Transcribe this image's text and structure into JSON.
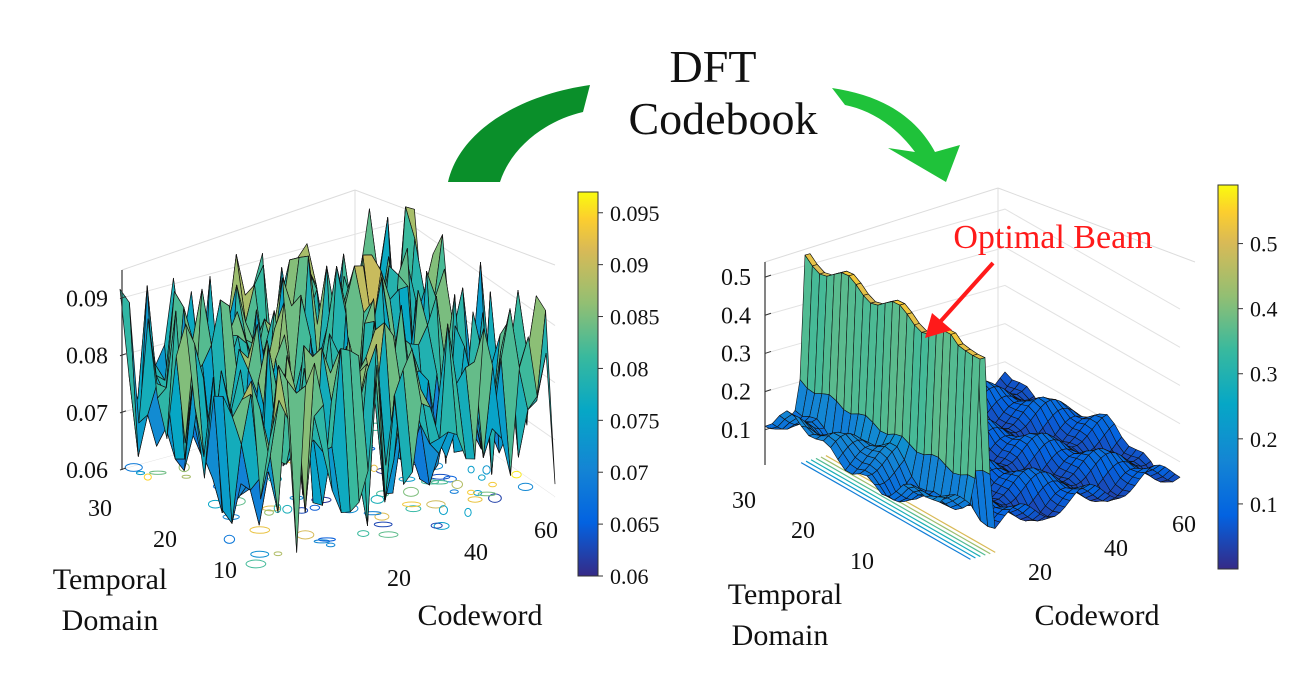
{
  "header": {
    "line1": "DFT",
    "line2": "Codebook"
  },
  "annotation": {
    "text": "Optimal Beam",
    "color": "#ff1a1a"
  },
  "colors": {
    "arrow_dark": "#0a8f2a",
    "arrow_light": "#1fc23a",
    "mesh_edge": "#111111"
  },
  "chart_data": [
    {
      "type": "surface",
      "xlabel": "Codeword",
      "ylabel": "Temporal Domain",
      "zlabel": "",
      "xticks": [
        "20",
        "40",
        "60"
      ],
      "yticks": [
        "10",
        "20",
        "30"
      ],
      "zticks": [
        "0.06",
        "0.07",
        "0.08",
        "0.09"
      ],
      "xlim": [
        1,
        64
      ],
      "ylim": [
        1,
        32
      ],
      "zlim": [
        0.06,
        0.095
      ],
      "colorbar": {
        "ticks": [
          "0.06",
          "0.065",
          "0.07",
          "0.075",
          "0.08",
          "0.085",
          "0.09",
          "0.095"
        ],
        "range": [
          0.06,
          0.097
        ],
        "colormap": "parula"
      },
      "grid": true,
      "contour_on_floor": true,
      "description_of_values": "noisy surface fluctuating between about 0.06 and 0.095 across all codewords"
    },
    {
      "type": "surface",
      "xlabel": "Codeword",
      "ylabel": "Temporal Domain",
      "zlabel": "",
      "xticks": [
        "20",
        "40",
        "60"
      ],
      "yticks": [
        "10",
        "20",
        "30"
      ],
      "zticks": [
        "0.1",
        "0.2",
        "0.3",
        "0.4",
        "0.5"
      ],
      "xlim": [
        1,
        64
      ],
      "ylim": [
        1,
        32
      ],
      "zlim": [
        0,
        0.55
      ],
      "colorbar": {
        "ticks": [
          "0.1",
          "0.2",
          "0.3",
          "0.4",
          "0.5"
        ],
        "range": [
          0.0,
          0.59
        ],
        "colormap": "parula"
      },
      "grid": true,
      "contour_on_floor": true,
      "optimal_beam": {
        "codeword": 12,
        "peak_value": 0.52,
        "other_level": 0.05
      }
    }
  ]
}
